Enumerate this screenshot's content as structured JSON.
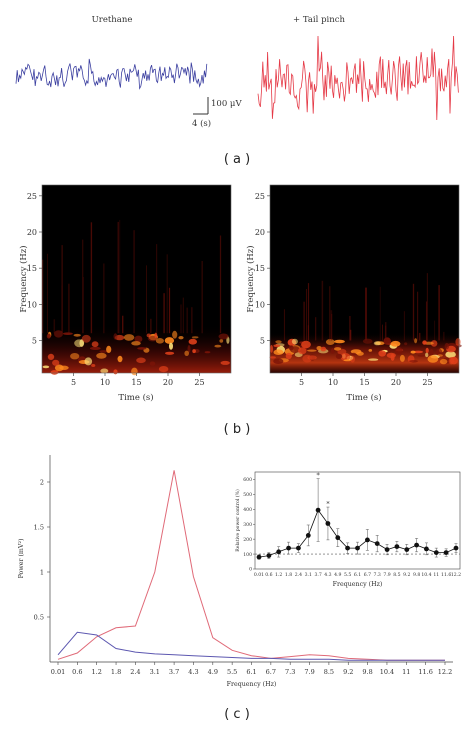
{
  "colors": {
    "blue_trace": "#3b3fa0",
    "red_trace": "#e53946",
    "axis": "#333333"
  },
  "panel_a": {
    "left_title": "Urethane",
    "right_title": "+ Tail pinch",
    "scale_voltage": "100 μV",
    "scale_time": "4 (s)",
    "caption": "( a )"
  },
  "panel_b": {
    "caption": "( b )",
    "left": {
      "ylabel": "Frequency (Hz)",
      "xlabel": "Time (s)"
    },
    "right": {
      "ylabel": "Frequency (Hz)",
      "xlabel": "Time (s)"
    },
    "yticks": [
      "5",
      "10",
      "15",
      "20",
      "25"
    ],
    "xticks": [
      "5",
      "10",
      "15",
      "20",
      "25"
    ]
  },
  "panel_c": {
    "caption": "( c )"
  },
  "chart_data": [
    {
      "type": "heatmap",
      "panel": "b-left",
      "xlabel": "Time (s)",
      "ylabel": "Frequency (Hz)",
      "xlim": [
        0,
        30
      ],
      "ylim": [
        0.5,
        26.5
      ],
      "xticks": [
        5,
        10,
        15,
        20,
        25
      ],
      "yticks": [
        5,
        10,
        15,
        20,
        25
      ],
      "band_hz": [
        0.5,
        6
      ]
    },
    {
      "type": "heatmap",
      "panel": "b-right",
      "xlabel": "Time (s)",
      "ylabel": "Frequency (Hz)",
      "xlim": [
        0,
        30
      ],
      "ylim": [
        0.5,
        26.5
      ],
      "xticks": [
        5,
        10,
        15,
        20,
        25
      ],
      "yticks": [
        5,
        10,
        15,
        20,
        25
      ],
      "band_hz": [
        2,
        5
      ]
    },
    {
      "type": "line",
      "panel": "c-main",
      "xlabel": "Frequency (Hz)",
      "ylabel": "Power (mV²)",
      "categories": [
        "0.01",
        "0.6",
        "1.2",
        "1.8",
        "2.4",
        "3.1",
        "3.7",
        "4.3",
        "4.9",
        "5.5",
        "6.1",
        "6.7",
        "7.3",
        "7.9",
        "8.5",
        "9.2",
        "9.8",
        "10.4",
        "11",
        "11.6",
        "12.2"
      ],
      "ylim": [
        0,
        2.3
      ],
      "yticks": [
        "0.5",
        "1",
        "1.5",
        "2"
      ],
      "series": [
        {
          "color": "#e06a78",
          "values": [
            0.03,
            0.1,
            0.28,
            0.38,
            0.4,
            1.0,
            2.13,
            0.95,
            0.27,
            0.13,
            0.07,
            0.04,
            0.06,
            0.08,
            0.07,
            0.04,
            0.03,
            0.02,
            0.02,
            0.02,
            0.02
          ]
        },
        {
          "color": "#5c57b0",
          "values": [
            0.08,
            0.33,
            0.3,
            0.15,
            0.11,
            0.09,
            0.08,
            0.07,
            0.06,
            0.05,
            0.04,
            0.04,
            0.03,
            0.03,
            0.03,
            0.02,
            0.02,
            0.02,
            0.02,
            0.02,
            0.02
          ]
        }
      ]
    },
    {
      "type": "line",
      "panel": "c-inset",
      "xlabel": "Frequency (Hz)",
      "ylabel": "Relative power control (%)",
      "categories": [
        "0.01",
        "0.6",
        "1.2",
        "1.8",
        "2.4",
        "3.1",
        "3.7",
        "4.3",
        "4.9",
        "5.5",
        "6.1",
        "6.7",
        "7.3",
        "7.9",
        "8.5",
        "9.2",
        "9.8",
        "10.4",
        "11",
        "11.6",
        "12.2"
      ],
      "ylim": [
        0,
        650
      ],
      "yticks": [
        "0",
        "100",
        "200",
        "300",
        "400",
        "500",
        "600"
      ],
      "reference": 100,
      "values": [
        80,
        90,
        115,
        140,
        140,
        225,
        395,
        305,
        210,
        140,
        140,
        195,
        170,
        130,
        150,
        130,
        160,
        135,
        110,
        110,
        140
      ],
      "errors": [
        15,
        20,
        35,
        40,
        30,
        70,
        210,
        110,
        60,
        35,
        40,
        70,
        55,
        35,
        35,
        35,
        45,
        40,
        30,
        25,
        30
      ],
      "significant": [
        "3.7",
        "4.3"
      ],
      "marker_label": "*"
    }
  ]
}
